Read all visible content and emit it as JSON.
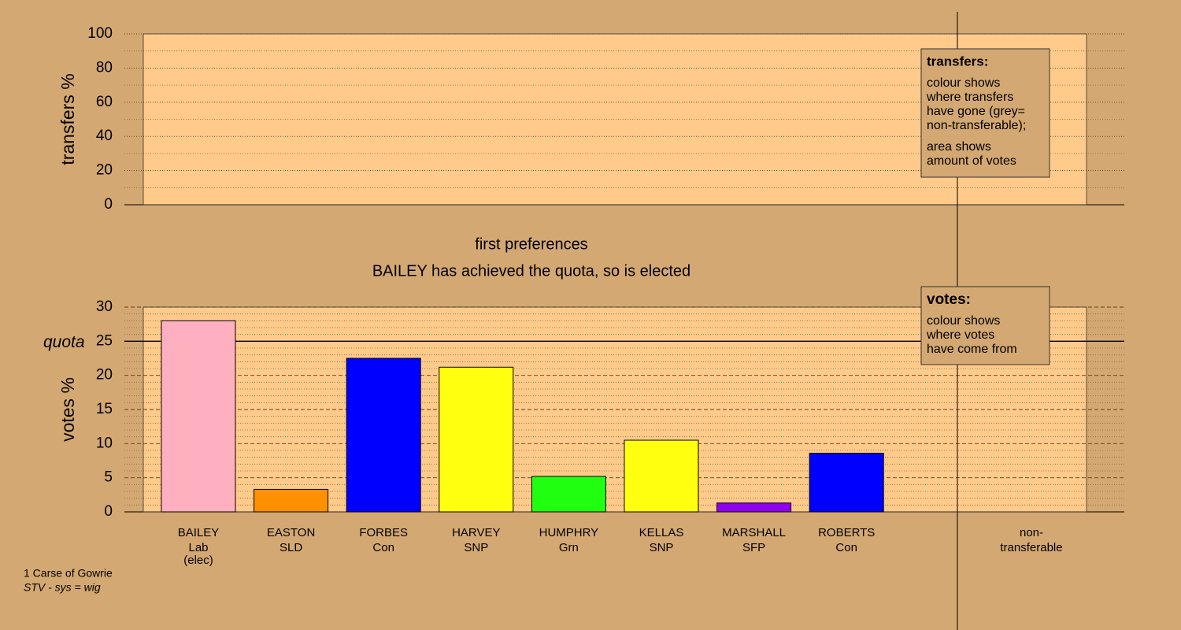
{
  "chart_data": [
    {
      "type": "bar",
      "ylabel": "transfers %",
      "ylim": [
        0,
        100
      ],
      "yticks": [
        0,
        20,
        40,
        60,
        80,
        100
      ],
      "minor_yticks": [
        10,
        30,
        50,
        70,
        90
      ],
      "grid": true,
      "legend": {
        "title": "transfers:",
        "lines": [
          "colour shows",
          "where transfers",
          "have gone (grey=",
          "non-transferable);",
          "area shows",
          "amount of votes"
        ]
      }
    },
    {
      "type": "bar",
      "title": "first preferences",
      "subtitle": "BAILEY has achieved the quota, so is elected",
      "ylabel": "votes %",
      "ylim": [
        0,
        30
      ],
      "yticks": [
        0,
        5,
        10,
        15,
        20,
        25,
        30
      ],
      "minor_yticks": [
        1,
        2,
        3,
        4,
        6,
        7,
        8,
        9,
        11,
        12,
        13,
        14,
        16,
        17,
        18,
        19,
        21,
        22,
        23,
        24,
        26,
        27,
        28,
        29
      ],
      "grid": true,
      "quota": {
        "value": 25,
        "label": "quota"
      },
      "categories": [
        "BAILEY",
        "EASTON",
        "FORBES",
        "HARVEY",
        "HUMPHRY",
        "KELLAS",
        "MARSHALL",
        "ROBERTS"
      ],
      "parties": [
        "Lab",
        "SLD",
        "Con",
        "SNP",
        "Grn",
        "SNP",
        "SFP",
        "Con"
      ],
      "status": [
        "(elec)",
        null,
        null,
        null,
        null,
        null,
        null,
        null
      ],
      "values": [
        28,
        3.3,
        22.5,
        21.2,
        5.2,
        10.5,
        1.3,
        8.6
      ],
      "colors": [
        "#ffb0c0",
        "#ff9000",
        "#0000ff",
        "#ffff10",
        "#20ff10",
        "#ffff10",
        "#9000f0",
        "#0000ff"
      ],
      "extra_column": [
        "non-",
        "transferable"
      ],
      "legend": {
        "title": "votes:",
        "lines": [
          "colour shows",
          "where votes",
          "have come from"
        ]
      }
    }
  ],
  "footer": {
    "constituency": "1 Carse of Gowrie",
    "system": "STV - sys = wig"
  }
}
